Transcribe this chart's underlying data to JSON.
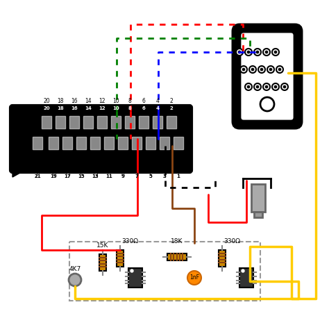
{
  "bg_color": "#ffffff",
  "wire_colors": {
    "red": "#ff0000",
    "green": "#008000",
    "blue": "#0000ff",
    "yellow": "#ffcc00",
    "brown": "#8B4513",
    "black": "#000000"
  },
  "resistor_colors": {
    "body": "#cc8800",
    "body_15k": "#cc8800",
    "bands_15k": [
      "#8B4513",
      "#006600"
    ],
    "bands_330": [
      "#ff8800",
      "#ff8800"
    ],
    "bands_18k": [
      "#cc8800",
      "#cc8800"
    ]
  },
  "labels": {
    "hdmi_pins_top": [
      "20",
      "18",
      "16",
      "14",
      "12",
      "10",
      "8",
      "6",
      "4",
      "2"
    ],
    "hdmi_pins_bottom": [
      "21",
      "19",
      "17",
      "15",
      "13",
      "11",
      "9",
      "7",
      "5",
      "3",
      "1"
    ],
    "resistor_15k": "15K",
    "resistor_330a": "330Ω",
    "resistor_18k": "18K",
    "resistor_330b": "330Ω",
    "cap_1nf": "1nF",
    "pot_4k7": "4K7"
  }
}
